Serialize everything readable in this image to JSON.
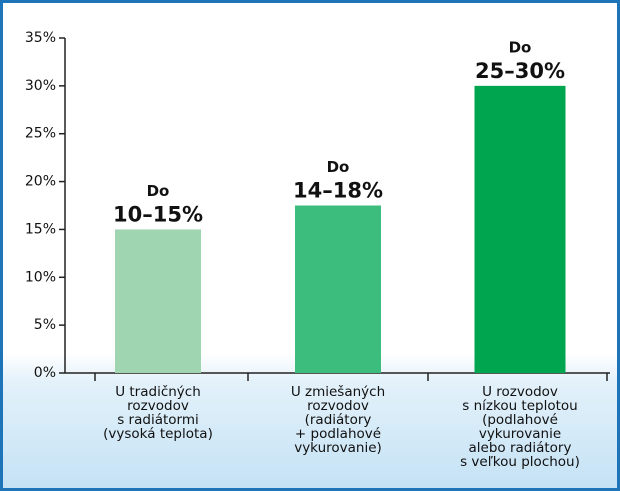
{
  "chart_data": {
    "type": "bar",
    "categories": [
      [
        "U tradičných",
        "rozvodov",
        "s radiátormi",
        "(vysoká teplota)"
      ],
      [
        "U zmiešaných",
        "rozvodov",
        "(radiátory",
        "+  podlahové",
        "vykurovanie)"
      ],
      [
        "U rozvodov",
        "s nízkou teplotou",
        "(podlahové",
        "vykurovanie",
        "alebo radiátory",
        "s veľkou plochou)"
      ]
    ],
    "values": [
      15,
      17.5,
      30
    ],
    "colors": [
      "#9fd5b0",
      "#3dbd7d",
      "#00a550"
    ],
    "annotations": [
      [
        "Do",
        "10–15%"
      ],
      [
        "Do",
        "14–18%"
      ],
      [
        "Do",
        "25–30%"
      ]
    ],
    "ylim": [
      0,
      35
    ],
    "yticks": [
      {
        "value": 0,
        "label": "0%"
      },
      {
        "value": 5,
        "label": "5%"
      },
      {
        "value": 10,
        "label": "10%"
      },
      {
        "value": 15,
        "label": "15%"
      },
      {
        "value": 20,
        "label": "20%"
      },
      {
        "value": 25,
        "label": "25%"
      },
      {
        "value": 30,
        "label": "30%"
      },
      {
        "value": 35,
        "label": "35%"
      }
    ]
  }
}
